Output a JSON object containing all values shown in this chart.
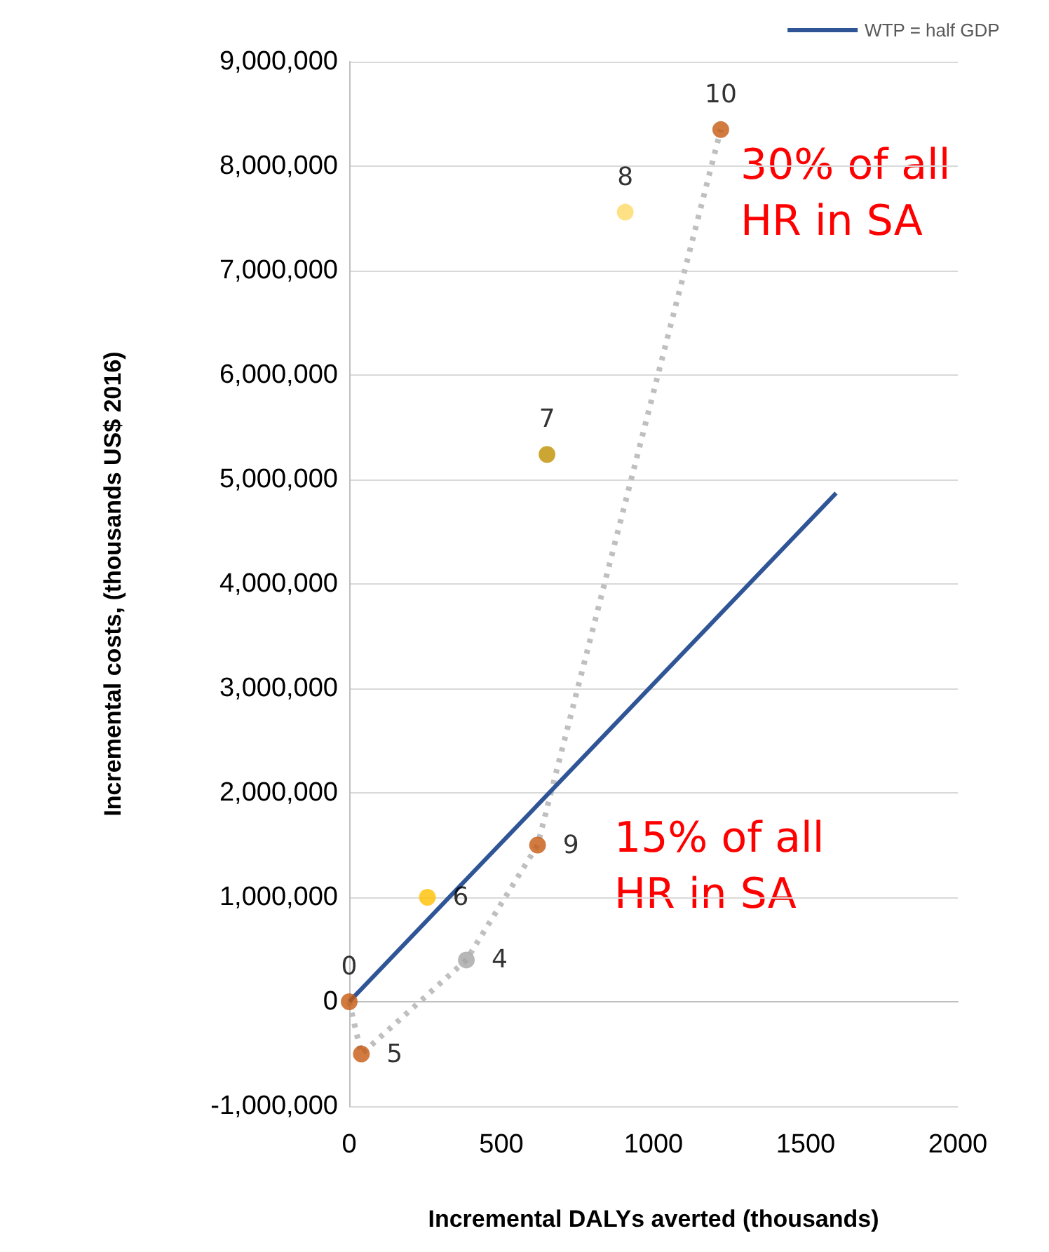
{
  "chart_data": {
    "type": "scatter",
    "xlabel": "Incremental DALYs averted (thousands)",
    "ylabel": "Incremental costs, (thousands US$ 2016)",
    "annotations": [
      "30% of all HR in SA",
      "15% of all HR in SA"
    ],
    "series": [
      {
        "type": "line",
        "color": "#bfbfbf",
        "line_style": "dotted",
        "marker": "none",
        "x": [
          0,
          40,
          385,
          619,
          1221
        ],
        "values": [
          0,
          -500000,
          400000,
          1500000,
          8350000
        ]
      },
      {
        "type": "line",
        "name": "WTP = half GDP",
        "color": "#2f5597",
        "line_style": "solid",
        "marker": "none",
        "x": [
          0,
          1600
        ],
        "values": [
          0,
          4870000
        ]
      },
      {
        "name": "0",
        "color": "#c55a11",
        "x": [
          0
        ],
        "values": [
          0
        ]
      },
      {
        "name": "5",
        "color": "#c55a11",
        "x": [
          40
        ],
        "values": [
          -500000
        ]
      },
      {
        "name": "4",
        "color": "#a5a5a5",
        "x": [
          385
        ],
        "values": [
          400000
        ]
      },
      {
        "name": "6",
        "color": "#ffc000",
        "x": [
          257
        ],
        "values": [
          1000000
        ]
      },
      {
        "name": "7",
        "color": "#bf9000",
        "x": [
          650
        ],
        "values": [
          5240000
        ]
      },
      {
        "name": "8",
        "color": "#ffd966",
        "x": [
          907
        ],
        "values": [
          7560000
        ]
      },
      {
        "name": "9",
        "color": "#c55a11",
        "x": [
          619
        ],
        "values": [
          1500000
        ]
      },
      {
        "name": "10",
        "color": "#c55a11",
        "x": [
          1221
        ],
        "values": [
          8350000
        ]
      }
    ],
    "marker": "circle",
    "xlim": [
      0,
      2000
    ],
    "xticks": [
      0,
      500,
      1000,
      1500,
      2000
    ],
    "ylim": [
      -1000000,
      9000000
    ],
    "yticks": [
      {
        "value": -1000000,
        "label": "-1,000,000"
      },
      0,
      {
        "value": 1000000,
        "label": "1,000,000"
      },
      {
        "value": 2000000,
        "label": "2,000,000"
      },
      {
        "value": 3000000,
        "label": "3,000,000"
      },
      {
        "value": 4000000,
        "label": "4,000,000"
      },
      {
        "value": 5000000,
        "label": "5,000,000"
      },
      {
        "value": 6000000,
        "label": "6,000,000"
      },
      {
        "value": 7000000,
        "label": "7,000,000"
      },
      {
        "value": 8000000,
        "label": "8,000,000"
      },
      {
        "value": 9000000,
        "label": "9,000,000"
      }
    ],
    "grid": "y",
    "legend": "top right"
  }
}
